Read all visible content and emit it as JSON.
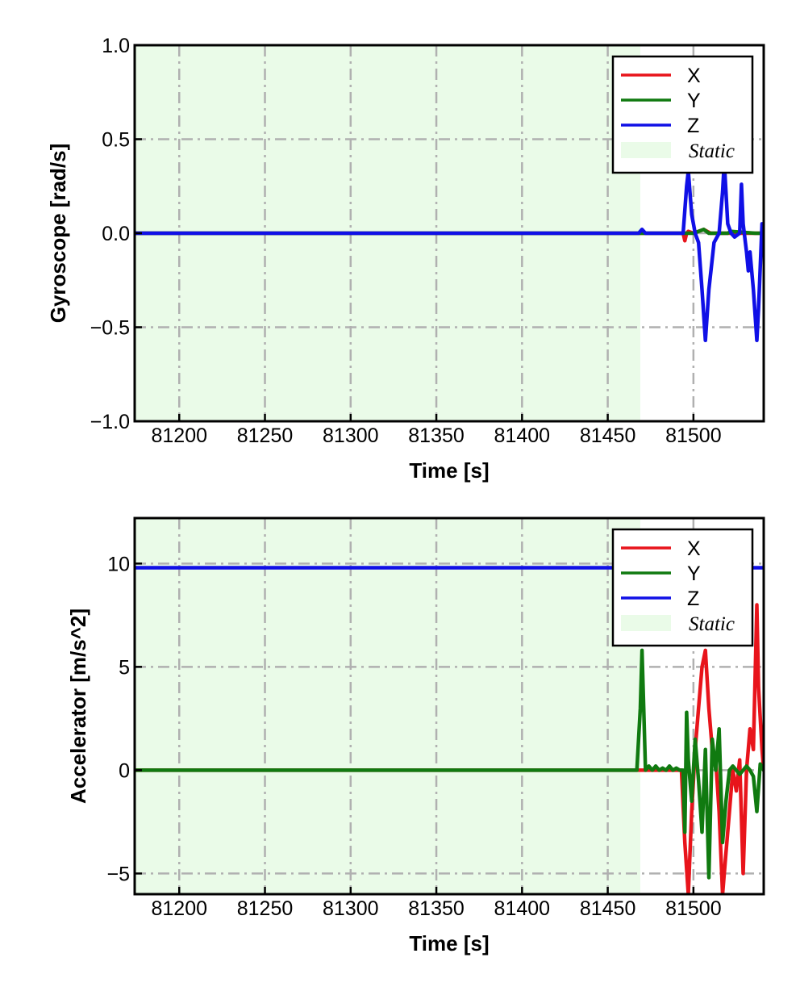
{
  "chart_data": [
    {
      "type": "line",
      "xlabel": "Time [s]",
      "ylabel": "Gyroscope [rad/s]",
      "xlim": [
        81174,
        81541
      ],
      "ylim": [
        -1.0,
        1.0
      ],
      "xticks": [
        81200,
        81250,
        81300,
        81350,
        81400,
        81450,
        81500
      ],
      "xtick_labels": [
        "81200",
        "81250",
        "81300",
        "81350",
        "81400",
        "81450",
        "81500"
      ],
      "yticks": [
        -1.0,
        -0.5,
        0.0,
        0.5,
        1.0
      ],
      "ytick_labels": [
        "−1.0",
        "−0.5",
        "0.0",
        "0.5",
        "1.0"
      ],
      "grid": true,
      "legend_position": "top-right",
      "static_region": {
        "label": "Static",
        "x_start": 81174,
        "x_end": 81469,
        "color": "#eafbe8"
      },
      "series": [
        {
          "name": "X",
          "color": "#e8141b",
          "x": [
            81174,
            81494,
            81495,
            81496,
            81497,
            81500,
            81506,
            81510,
            81530,
            81541
          ],
          "y": [
            0,
            0,
            -0.04,
            0,
            0.01,
            0,
            0.02,
            0,
            0,
            0
          ]
        },
        {
          "name": "Y",
          "color": "#107a10",
          "x": [
            81174,
            81500,
            81503,
            81506,
            81509,
            81520,
            81522,
            81536,
            81541
          ],
          "y": [
            0,
            0,
            0.01,
            0.02,
            0,
            0,
            0.01,
            0,
            0
          ]
        },
        {
          "name": "Z",
          "color": "#1010e6",
          "x": [
            81174,
            81468,
            81470,
            81472,
            81494,
            81496,
            81497,
            81499,
            81501,
            81503,
            81505,
            81507,
            81509,
            81512,
            81515,
            81517,
            81518,
            81520,
            81522,
            81524,
            81527,
            81528,
            81529,
            81531,
            81532,
            81533,
            81535,
            81537,
            81538,
            81540,
            81541
          ],
          "y": [
            0,
            0,
            0.02,
            0,
            0,
            0.25,
            0.33,
            0.1,
            0,
            -0.05,
            -0.3,
            -0.57,
            -0.3,
            -0.05,
            0,
            0.22,
            0.38,
            0.05,
            0,
            -0.02,
            0,
            0.26,
            0.05,
            -0.1,
            -0.2,
            -0.1,
            -0.3,
            -0.57,
            -0.4,
            0.05,
            0.05
          ]
        }
      ]
    },
    {
      "type": "line",
      "xlabel": "Time [s]",
      "ylabel": "Accelerator [m/s^2]",
      "xlim": [
        81174,
        81541
      ],
      "ylim": [
        -6,
        12.2
      ],
      "xticks": [
        81200,
        81250,
        81300,
        81350,
        81400,
        81450,
        81500
      ],
      "xtick_labels": [
        "81200",
        "81250",
        "81300",
        "81350",
        "81400",
        "81450",
        "81500"
      ],
      "yticks": [
        -5,
        0,
        5,
        10
      ],
      "ytick_labels": [
        "−5",
        "0",
        "5",
        "10"
      ],
      "grid": true,
      "legend_position": "top-right",
      "static_region": {
        "label": "Static",
        "x_start": 81174,
        "x_end": 81469,
        "color": "#eafbe8"
      },
      "series": [
        {
          "name": "X",
          "color": "#e8141b",
          "x": [
            81174,
            81493,
            81495,
            81497,
            81499,
            81501,
            81503,
            81505,
            81507,
            81509,
            81511,
            81513,
            81515,
            81517,
            81519,
            81521,
            81523,
            81525,
            81527,
            81529,
            81531,
            81533,
            81535,
            81537,
            81538,
            81540,
            81541
          ],
          "y": [
            0,
            0,
            -3.5,
            -6,
            -2,
            1,
            3,
            5,
            5.8,
            3,
            1,
            0.5,
            -2,
            -6,
            -4,
            -2,
            0,
            -1,
            0.5,
            -5,
            0,
            2,
            1,
            8,
            4,
            1,
            0
          ]
        },
        {
          "name": "Y",
          "color": "#107a10",
          "x": [
            81174,
            81467,
            81469,
            81470,
            81471,
            81472,
            81474,
            81476,
            81478,
            81480,
            81482,
            81484,
            81486,
            81488,
            81490,
            81492,
            81494,
            81495,
            81496,
            81497,
            81499,
            81501,
            81503,
            81505,
            81507,
            81509,
            81511,
            81513,
            81515,
            81517,
            81519,
            81521,
            81523,
            81525,
            81527,
            81529,
            81531,
            81533,
            81535,
            81537,
            81539,
            81541
          ],
          "y": [
            0,
            0,
            3,
            5.8,
            3,
            0,
            0.2,
            0,
            0.2,
            0,
            0.1,
            0,
            0.2,
            0,
            0.1,
            0,
            0,
            -3,
            2.8,
            0.5,
            -1.5,
            1.5,
            -0.5,
            -3,
            1,
            -5.2,
            1.5,
            0,
            2,
            -3.5,
            -1.5,
            0,
            0.2,
            0,
            -0.2,
            0,
            0.2,
            0,
            -0.3,
            -2,
            0.3,
            0
          ]
        },
        {
          "name": "Z",
          "color": "#1010e6",
          "x": [
            81174,
            81469,
            81541
          ],
          "y": [
            9.8,
            9.8,
            9.8
          ]
        }
      ]
    }
  ]
}
